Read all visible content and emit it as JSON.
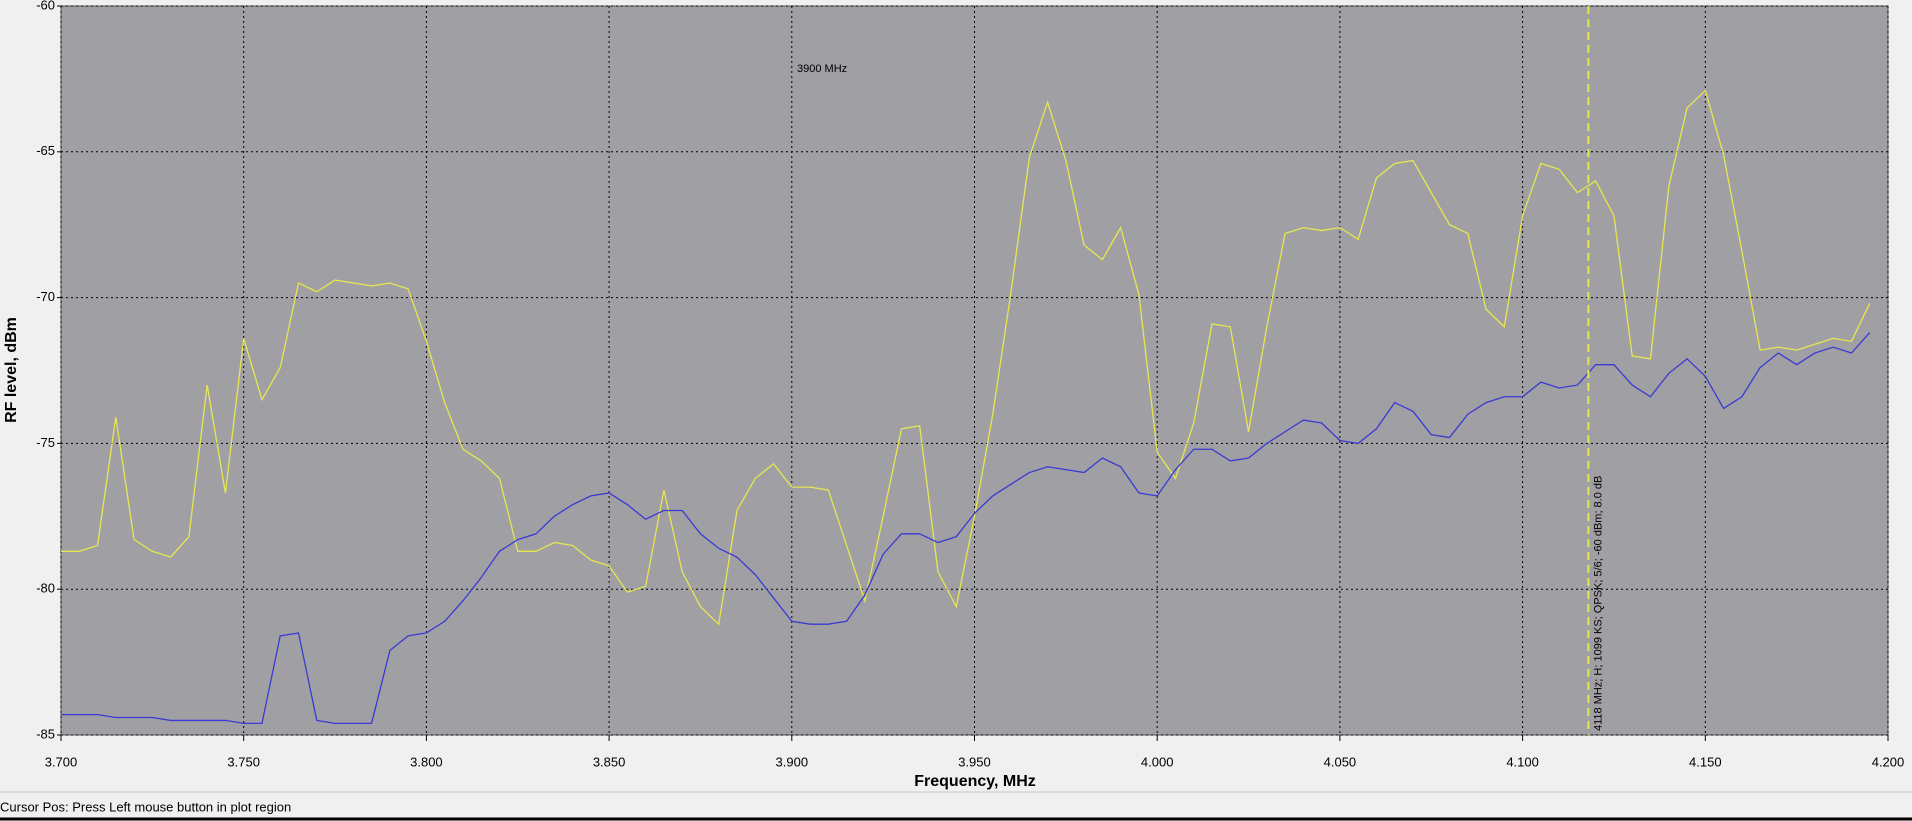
{
  "chart_data": {
    "type": "line",
    "xlabel": "Frequency, MHz",
    "ylabel": "RF level, dBm",
    "x": [
      3.7,
      3.705,
      3.71,
      3.715,
      3.72,
      3.725,
      3.73,
      3.735,
      3.74,
      3.745,
      3.75,
      3.755,
      3.76,
      3.765,
      3.77,
      3.775,
      3.78,
      3.785,
      3.79,
      3.795,
      3.8,
      3.805,
      3.81,
      3.815,
      3.82,
      3.825,
      3.83,
      3.835,
      3.84,
      3.845,
      3.85,
      3.855,
      3.86,
      3.865,
      3.87,
      3.875,
      3.88,
      3.885,
      3.89,
      3.895,
      3.9,
      3.905,
      3.91,
      3.915,
      3.92,
      3.925,
      3.93,
      3.935,
      3.94,
      3.945,
      3.95,
      3.955,
      3.96,
      3.965,
      3.97,
      3.975,
      3.98,
      3.985,
      3.99,
      3.995,
      4.0,
      4.005,
      4.01,
      4.015,
      4.02,
      4.025,
      4.03,
      4.035,
      4.04,
      4.045,
      4.05,
      4.055,
      4.06,
      4.065,
      4.07,
      4.075,
      4.08,
      4.085,
      4.09,
      4.095,
      4.1,
      4.105,
      4.11,
      4.115,
      4.12,
      4.125,
      4.13,
      4.135,
      4.14,
      4.145,
      4.15,
      4.155,
      4.16,
      4.165,
      4.17,
      4.175,
      4.18,
      4.185,
      4.19,
      4.195
    ],
    "series": [
      {
        "color": "#e6e650",
        "values": [
          -78.7,
          -78.7,
          -78.5,
          -74.1,
          -78.3,
          -78.7,
          -78.9,
          -78.2,
          -73.0,
          -76.7,
          -71.4,
          -73.5,
          -72.4,
          -69.5,
          -69.8,
          -69.4,
          -69.5,
          -69.6,
          -69.5,
          -69.7,
          -71.5,
          -73.6,
          -75.2,
          -75.6,
          -76.2,
          -78.7,
          -78.7,
          -78.4,
          -78.5,
          -79.0,
          -79.2,
          -80.1,
          -79.9,
          -76.6,
          -79.4,
          -80.6,
          -81.2,
          -77.3,
          -76.2,
          -75.7,
          -76.5,
          -76.5,
          -76.6,
          -78.5,
          -80.4,
          -77.5,
          -74.5,
          -74.4,
          -79.4,
          -80.6,
          -77.5,
          -74.0,
          -69.8,
          -65.2,
          -63.3,
          -65.3,
          -68.2,
          -68.7,
          -67.6,
          -69.9,
          -75.3,
          -76.2,
          -74.3,
          -70.9,
          -71.0,
          -74.6,
          -71.0,
          -67.8,
          -67.6,
          -67.7,
          -67.6,
          -68.0,
          -65.9,
          -65.4,
          -65.3,
          -66.4,
          -67.5,
          -67.8,
          -70.4,
          -71.0,
          -67.2,
          -65.4,
          -65.6,
          -66.4,
          -66.0,
          -67.2,
          -72.0,
          -72.1,
          -66.2,
          -63.5,
          -62.9,
          -65.1,
          -68.4,
          -71.8,
          -71.7,
          -71.8,
          -71.6,
          -71.4,
          -71.5,
          -70.2
        ]
      },
      {
        "color": "#3a3ad2",
        "values": [
          -84.3,
          -84.3,
          -84.3,
          -84.4,
          -84.4,
          -84.4,
          -84.5,
          -84.5,
          -84.5,
          -84.5,
          -84.6,
          -84.6,
          -81.6,
          -81.5,
          -84.5,
          -84.6,
          -84.6,
          -84.6,
          -82.1,
          -81.6,
          -81.5,
          -81.1,
          -80.4,
          -79.6,
          -78.7,
          -78.3,
          -78.1,
          -77.5,
          -77.1,
          -76.8,
          -76.7,
          -77.1,
          -77.6,
          -77.3,
          -77.3,
          -78.1,
          -78.6,
          -78.9,
          -79.5,
          -80.3,
          -81.1,
          -81.2,
          -81.2,
          -81.1,
          -80.2,
          -78.8,
          -78.1,
          -78.1,
          -78.4,
          -78.2,
          -77.4,
          -76.8,
          -76.4,
          -76.0,
          -75.8,
          -75.9,
          -76.0,
          -75.5,
          -75.8,
          -76.7,
          -76.8,
          -75.9,
          -75.2,
          -75.2,
          -75.6,
          -75.5,
          -75.0,
          -74.6,
          -74.2,
          -74.3,
          -74.9,
          -75.0,
          -74.5,
          -73.6,
          -73.9,
          -74.7,
          -74.8,
          -74.0,
          -73.6,
          -73.4,
          -73.4,
          -72.9,
          -73.1,
          -73.0,
          -72.3,
          -72.3,
          -73.0,
          -73.4,
          -72.6,
          -72.1,
          -72.7,
          -73.8,
          -73.4,
          -72.4,
          -71.9,
          -72.3,
          -71.9,
          -71.7,
          -71.9,
          -71.2
        ]
      }
    ],
    "xlim": [
      3.7,
      4.2
    ],
    "xticks": [
      {
        "value": 3.7,
        "label": "3.700"
      },
      {
        "value": 3.75,
        "label": "3.750"
      },
      {
        "value": 3.8,
        "label": "3.800"
      },
      {
        "value": 3.85,
        "label": "3.850"
      },
      {
        "value": 3.9,
        "label": "3.900"
      },
      {
        "value": 3.95,
        "label": "3.950"
      },
      {
        "value": 4.0,
        "label": "4.000"
      },
      {
        "value": 4.05,
        "label": "4.050"
      },
      {
        "value": 4.1,
        "label": "4.100"
      },
      {
        "value": 4.15,
        "label": "4.150"
      },
      {
        "value": 4.2,
        "label": "4.200"
      }
    ],
    "ylim": [
      -85,
      -60
    ],
    "yticks": [
      -85,
      -80,
      -75,
      -70,
      -65,
      -60
    ],
    "grid": true,
    "center_label": "3900 MHz",
    "marker": {
      "x": 4.118,
      "color": "#e6e650",
      "label": "4118 MHz; H; 1099 KS; QPSK; 5/6; -60 dBm; 8.0 dB"
    }
  },
  "status_bar": {
    "text": "Cursor Pos: Press Left mouse button in plot region"
  }
}
